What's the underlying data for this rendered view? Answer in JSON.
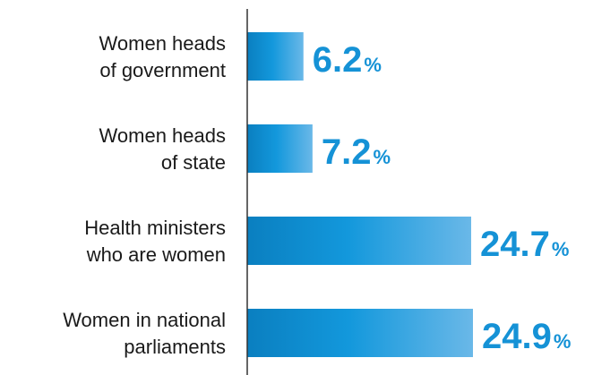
{
  "chart_data": {
    "type": "bar",
    "orientation": "horizontal",
    "categories": [
      [
        "Women heads",
        "of government"
      ],
      [
        "Women heads",
        "of state"
      ],
      [
        "Health ministers",
        "who are women"
      ],
      [
        "Women in national",
        "parliaments"
      ]
    ],
    "values": [
      6.2,
      7.2,
      24.7,
      24.9
    ],
    "value_suffix": "%",
    "xlim": [
      0,
      24.9
    ],
    "grid": false,
    "legend": "none",
    "colors": {
      "bar_dark": "#0a7fc0",
      "bar_mid": "#1398dc",
      "bar_light": "#6ab8e8",
      "value_text": "#1592d6",
      "label_text": "#1a1a1a",
      "axis": "#333333"
    }
  }
}
